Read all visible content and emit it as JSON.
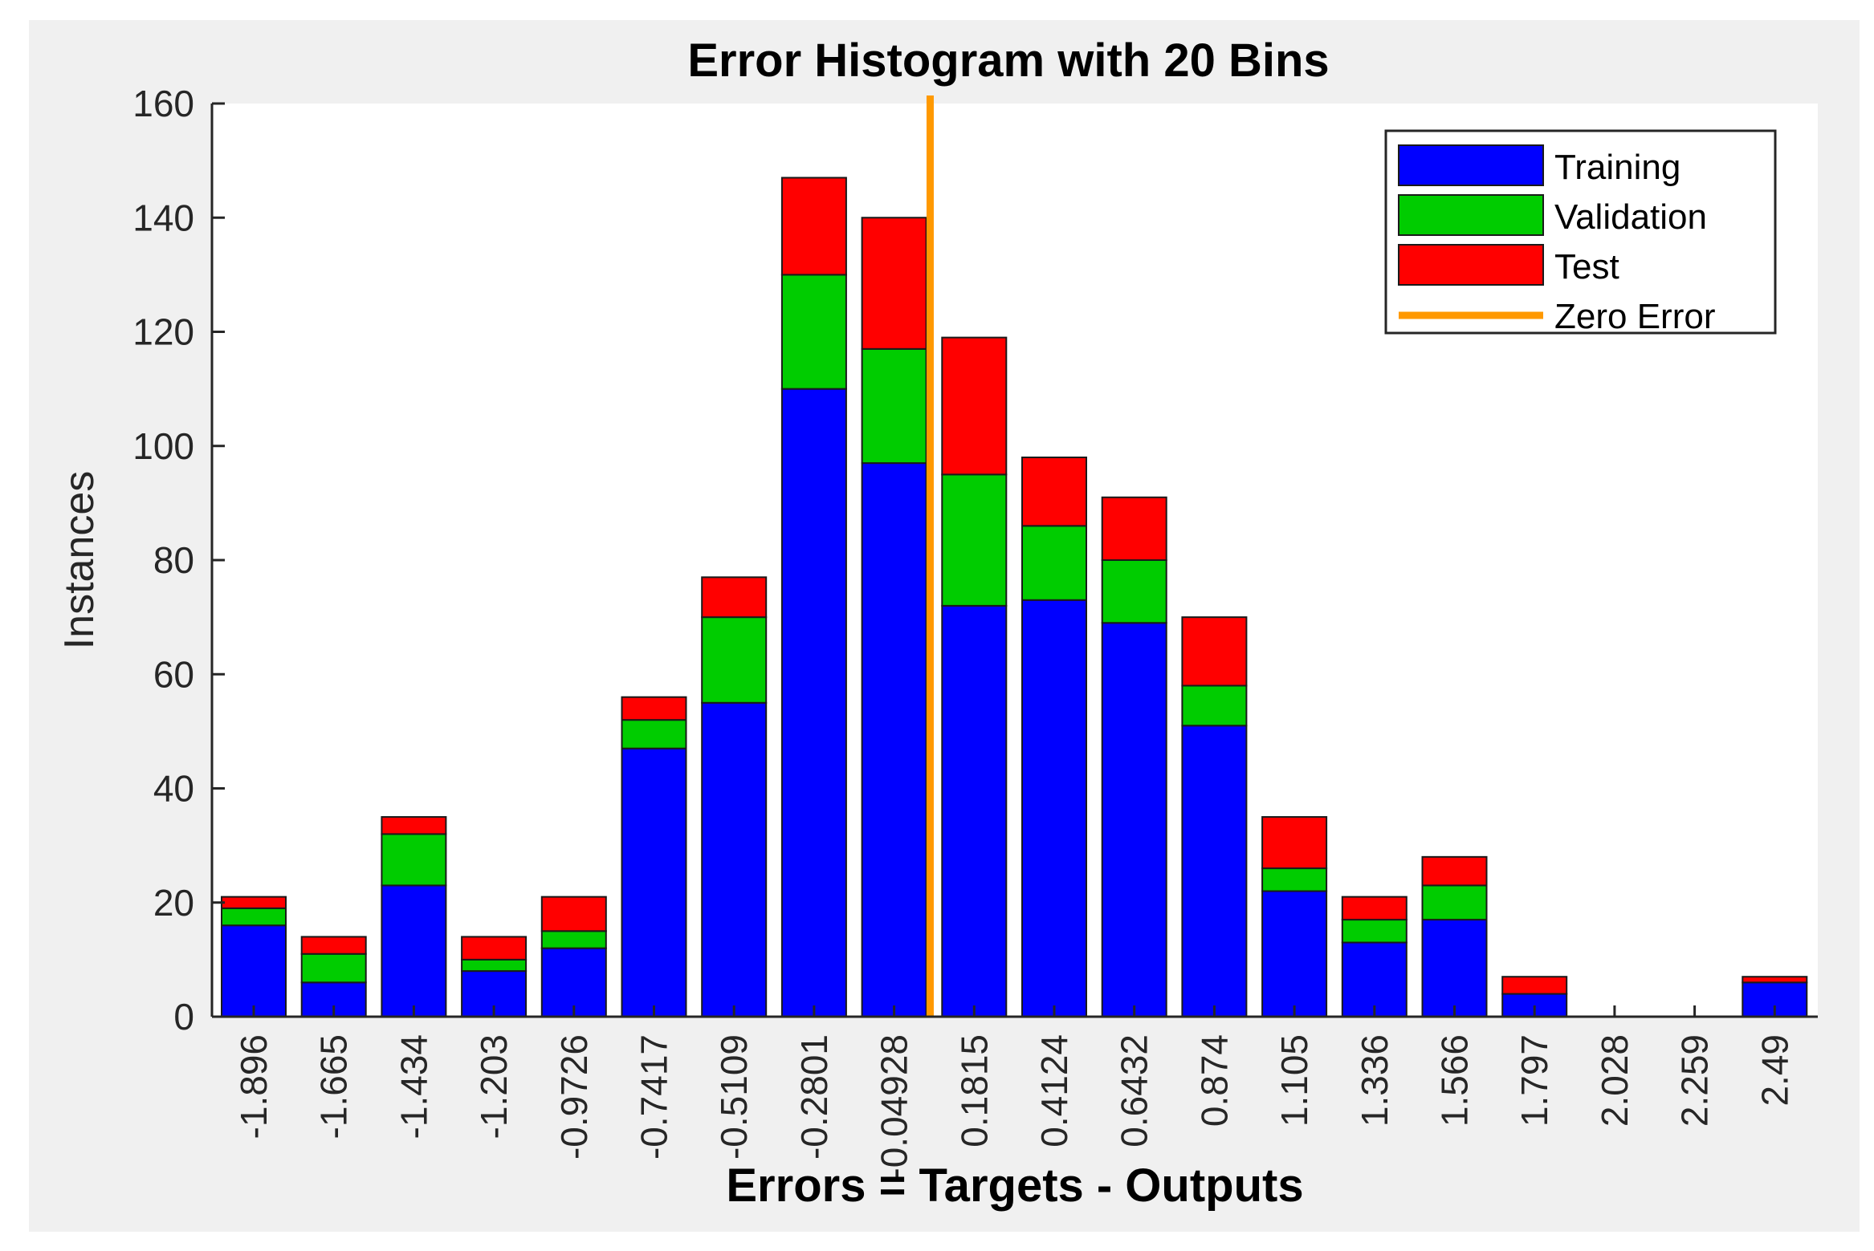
{
  "chart_data": {
    "type": "bar",
    "stacked": true,
    "title": "Error Histogram with 20 Bins",
    "xlabel": "Errors = Targets - Outputs",
    "ylabel": "Instances",
    "ylim": [
      0,
      160
    ],
    "yticks": [
      "0",
      "20",
      "40",
      "60",
      "80",
      "100",
      "120",
      "140",
      "160"
    ],
    "ytick_values": [
      0,
      20,
      40,
      60,
      80,
      100,
      120,
      140,
      160
    ],
    "categories": [
      "-1.896",
      "-1.665",
      "-1.434",
      "-1.203",
      "-0.9726",
      "-0.7417",
      "-0.5109",
      "-0.2801",
      "-0.04928",
      "0.1815",
      "0.4124",
      "0.6432",
      "0.874",
      "1.105",
      "1.336",
      "1.566",
      "1.797",
      "2.028",
      "2.259",
      "2.49"
    ],
    "series": [
      {
        "name": "Training",
        "color": "#0000ff",
        "values": [
          16,
          6,
          23,
          8,
          12,
          47,
          55,
          110,
          97,
          72,
          73,
          69,
          51,
          22,
          13,
          17,
          4,
          0,
          0,
          6
        ]
      },
      {
        "name": "Validation",
        "color": "#00cc00",
        "values": [
          3,
          5,
          9,
          2,
          3,
          5,
          15,
          20,
          20,
          23,
          13,
          11,
          7,
          4,
          4,
          6,
          0,
          0,
          0,
          0
        ]
      },
      {
        "name": "Test",
        "color": "#ff0000",
        "values": [
          2,
          3,
          3,
          4,
          6,
          4,
          7,
          17,
          23,
          24,
          12,
          11,
          12,
          9,
          4,
          5,
          3,
          0,
          0,
          1
        ]
      }
    ],
    "zero_error": {
      "name": "Zero Error",
      "color": "#ff9900",
      "x_position_bin": 8.45
    },
    "legend": {
      "placement": "top-right",
      "entries": [
        "Training",
        "Validation",
        "Test",
        "Zero Error"
      ]
    },
    "grid": false
  }
}
